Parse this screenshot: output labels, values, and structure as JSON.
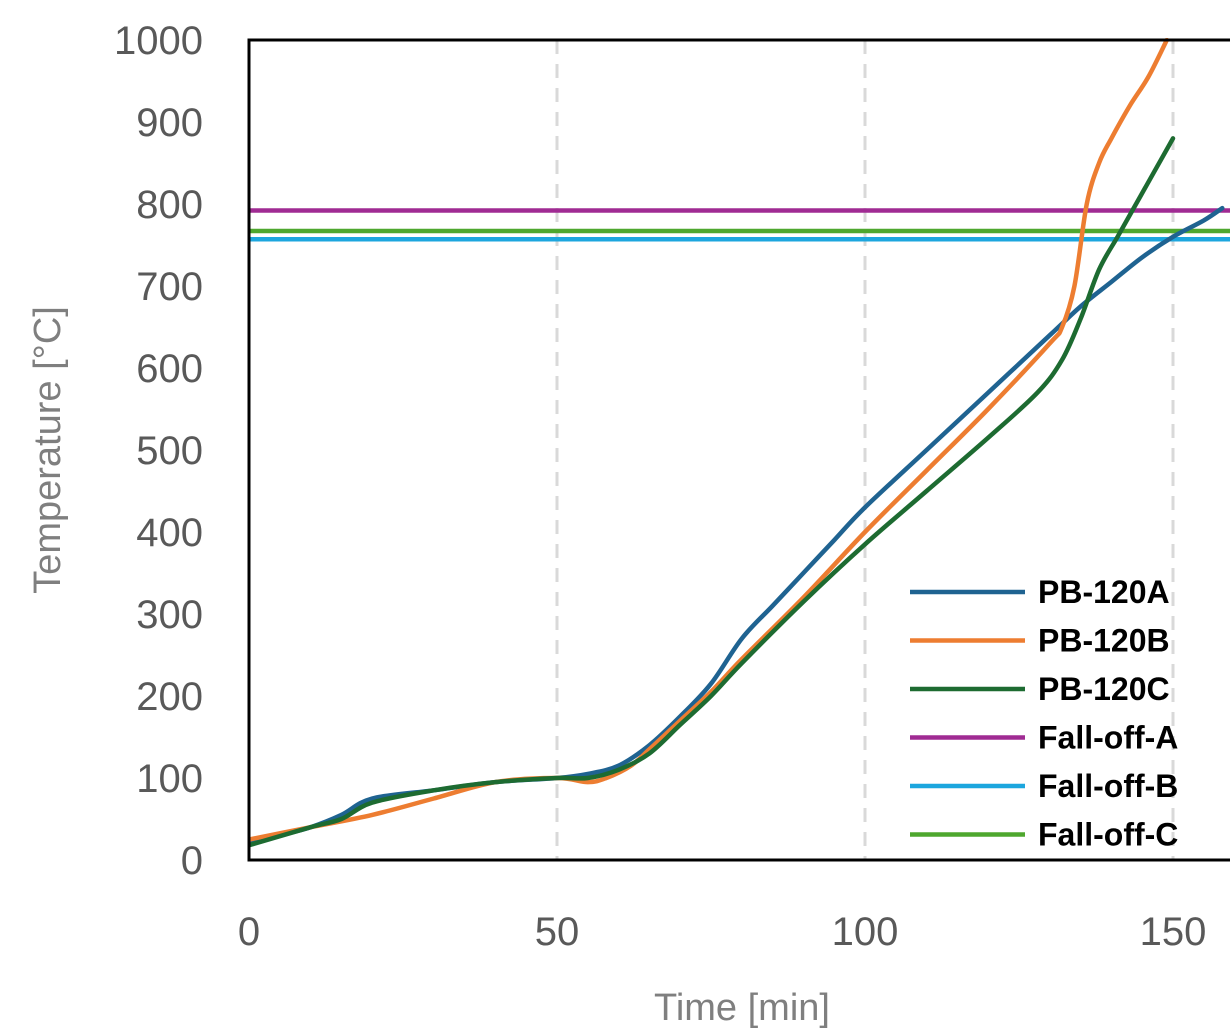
{
  "chart_data": {
    "type": "line",
    "title": "",
    "xlabel": "Time [min]",
    "ylabel": "Temperature [°C]",
    "xlim": [
      0,
      160
    ],
    "ylim": [
      0,
      1000
    ],
    "x_ticks": [
      "0",
      "50",
      "100",
      "150"
    ],
    "y_ticks": [
      "0",
      "100",
      "200",
      "300",
      "400",
      "500",
      "600",
      "700",
      "800",
      "900",
      "1000"
    ],
    "vertical_gridlines": "dashed",
    "legend_position": "bottom-right",
    "series": [
      {
        "name": "PB-120A",
        "color": "#1f6391",
        "points": [
          [
            0,
            20
          ],
          [
            5,
            30
          ],
          [
            10,
            40
          ],
          [
            15,
            55
          ],
          [
            20,
            75
          ],
          [
            30,
            85
          ],
          [
            40,
            95
          ],
          [
            50,
            100
          ],
          [
            55,
            105
          ],
          [
            60,
            115
          ],
          [
            65,
            140
          ],
          [
            70,
            175
          ],
          [
            75,
            215
          ],
          [
            80,
            270
          ],
          [
            85,
            310
          ],
          [
            90,
            350
          ],
          [
            95,
            390
          ],
          [
            100,
            430
          ],
          [
            110,
            500
          ],
          [
            120,
            570
          ],
          [
            130,
            640
          ],
          [
            135,
            675
          ],
          [
            140,
            705
          ],
          [
            145,
            735
          ],
          [
            150,
            760
          ],
          [
            155,
            780
          ],
          [
            158,
            795
          ]
        ]
      },
      {
        "name": "PB-120B",
        "color": "#ed7d31",
        "points": [
          [
            0,
            25
          ],
          [
            10,
            40
          ],
          [
            20,
            55
          ],
          [
            30,
            75
          ],
          [
            40,
            95
          ],
          [
            50,
            100
          ],
          [
            55,
            95
          ],
          [
            58,
            100
          ],
          [
            62,
            115
          ],
          [
            65,
            135
          ],
          [
            70,
            170
          ],
          [
            75,
            205
          ],
          [
            80,
            245
          ],
          [
            90,
            320
          ],
          [
            100,
            400
          ],
          [
            110,
            475
          ],
          [
            120,
            550
          ],
          [
            130,
            630
          ],
          [
            132,
            650
          ],
          [
            134,
            700
          ],
          [
            136,
            800
          ],
          [
            138,
            850
          ],
          [
            140,
            880
          ],
          [
            143,
            920
          ],
          [
            146,
            955
          ],
          [
            149,
            1000
          ]
        ]
      },
      {
        "name": "PB-120C",
        "color": "#1d6b31",
        "points": [
          [
            0,
            18
          ],
          [
            10,
            40
          ],
          [
            15,
            50
          ],
          [
            20,
            70
          ],
          [
            30,
            85
          ],
          [
            40,
            95
          ],
          [
            50,
            100
          ],
          [
            55,
            100
          ],
          [
            60,
            110
          ],
          [
            65,
            130
          ],
          [
            70,
            165
          ],
          [
            75,
            200
          ],
          [
            80,
            240
          ],
          [
            90,
            315
          ],
          [
            100,
            385
          ],
          [
            110,
            450
          ],
          [
            120,
            515
          ],
          [
            128,
            570
          ],
          [
            132,
            610
          ],
          [
            135,
            660
          ],
          [
            138,
            720
          ],
          [
            141,
            760
          ],
          [
            144,
            800
          ],
          [
            147,
            840
          ],
          [
            150,
            880
          ]
        ]
      },
      {
        "name": "Fall-off-A",
        "color": "#a02b93",
        "points": [
          [
            0,
            792
          ],
          [
            160,
            792
          ]
        ]
      },
      {
        "name": "Fall-off-B",
        "color": "#1ca6de",
        "points": [
          [
            0,
            757
          ],
          [
            160,
            757
          ]
        ]
      },
      {
        "name": "Fall-off-C",
        "color": "#4ea72e",
        "points": [
          [
            0,
            767
          ],
          [
            160,
            767
          ]
        ]
      }
    ]
  }
}
